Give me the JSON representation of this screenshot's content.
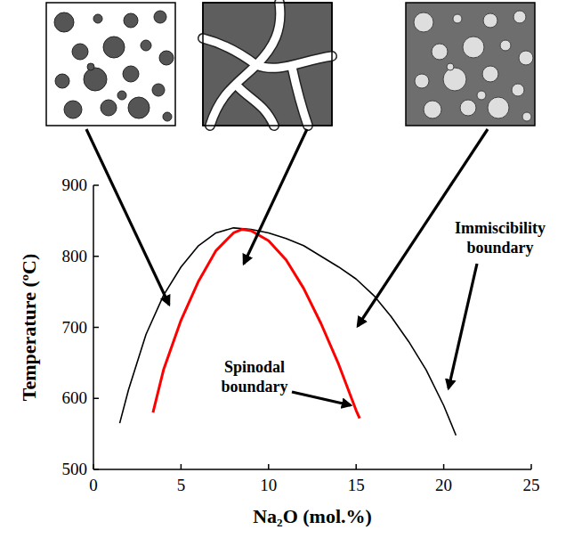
{
  "chart_data": {
    "type": "line",
    "x_label": "Na₂O (mol.%)",
    "y_label": "Temperature (ºC)",
    "xlim": [
      0,
      25
    ],
    "ylim": [
      500,
      900
    ],
    "xticks": [
      0,
      5,
      10,
      15,
      20,
      25
    ],
    "yticks": [
      500,
      600,
      700,
      800,
      900
    ],
    "grid": false,
    "series": [
      {
        "name": "Immiscibility boundary",
        "color": "#000000",
        "line_style": "solid",
        "x": [
          1.5,
          2,
          3,
          4,
          5,
          6,
          7,
          8,
          9,
          10,
          11,
          12,
          13,
          14,
          15,
          16,
          17,
          18,
          19,
          20,
          20.7
        ],
        "values": [
          565,
          612,
          690,
          745,
          785,
          815,
          833,
          840,
          838,
          833,
          825,
          815,
          800,
          785,
          768,
          745,
          715,
          680,
          640,
          590,
          548
        ]
      },
      {
        "name": "Spinodal boundary",
        "color": "#ff0000",
        "line_style": "solid",
        "x": [
          3.4,
          4,
          5,
          6,
          7,
          8,
          8.5,
          9,
          10,
          11,
          12,
          13,
          14,
          15,
          15.2
        ],
        "values": [
          580,
          640,
          710,
          765,
          808,
          833,
          838,
          836,
          822,
          795,
          755,
          705,
          648,
          583,
          572
        ]
      }
    ]
  }
}
